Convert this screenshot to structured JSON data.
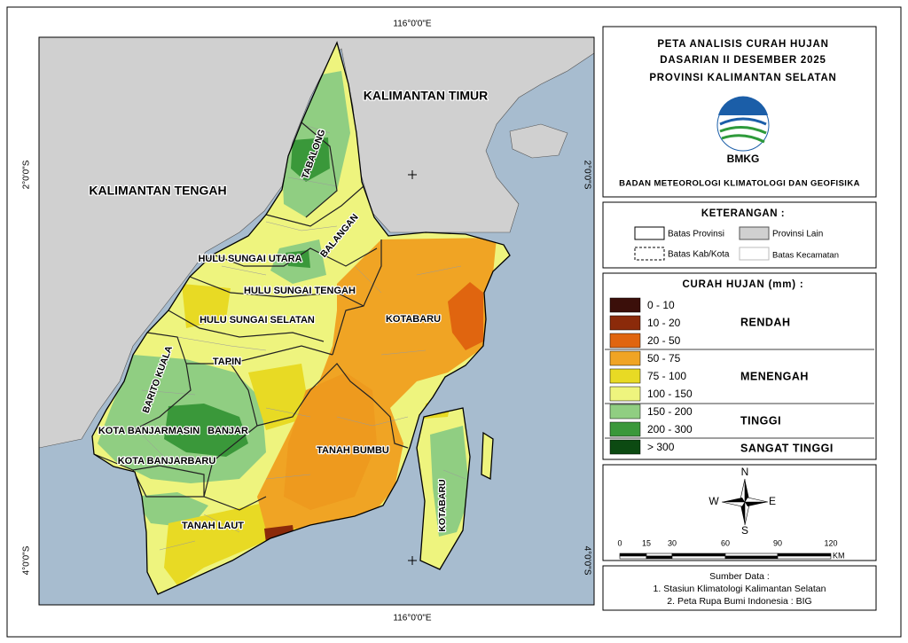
{
  "map": {
    "coord_top": "116°0'0\"E",
    "coord_bottom": "116°0'0\"E",
    "coord_left_top": "2°0'0\"S",
    "coord_left_bottom": "4°0'0\"S",
    "coord_right_top": "2°0'0\"S",
    "coord_right_bottom": "4°0'0\"S",
    "labels": [
      "KALIMANTAN TIMUR",
      "KALIMANTAN TENGAH",
      "TABALONG",
      "BALANGAN",
      "HULU SUNGAI UTARA",
      "HULU SUNGAI TENGAH",
      "HULU SUNGAI SELATAN",
      "KOTABARU",
      "TAPIN",
      "BARITO KUALA",
      "KOTA BANJARMASIN",
      "BANJAR",
      "KOTA BANJARBARU",
      "TANAH BUMBU",
      "TANAH LAUT",
      "KOTABARU"
    ]
  },
  "title": {
    "lines": [
      "PETA ANALISIS CURAH HUJAN",
      "DASARIAN II DESEMBER 2025",
      "PROVINSI KALIMANTAN SELATAN"
    ],
    "logo_text": "BMKG",
    "agency": "BADAN METEOROLOGI KLIMATOLOGI DAN GEOFISIKA"
  },
  "keterangan": {
    "title": "KETERANGAN :",
    "items": [
      "Batas Provinsi",
      "Provinsi Lain",
      "Batas Kab/Kota",
      "Batas Kecamatan"
    ]
  },
  "curah_hujan": {
    "title": "CURAH HUJAN (mm) :",
    "classes": [
      {
        "label": "0 - 10",
        "color": "#3b0f0a"
      },
      {
        "label": "10 - 20",
        "color": "#8b2a0a"
      },
      {
        "label": "20 - 50",
        "color": "#e0650f"
      },
      {
        "label": "50 - 75",
        "color": "#f0a424"
      },
      {
        "label": "75 - 100",
        "color": "#e8da24"
      },
      {
        "label": "100 - 150",
        "color": "#eef47e"
      },
      {
        "label": "150 - 200",
        "color": "#90ce82"
      },
      {
        "label": "200 - 300",
        "color": "#3a983a"
      },
      {
        "label": "> 300",
        "color": "#0c4a12"
      }
    ],
    "categories": [
      "RENDAH",
      "MENENGAH",
      "TINGGI",
      "SANGAT TINGGI"
    ]
  },
  "compass": {
    "n": "N",
    "s": "S",
    "e": "E",
    "w": "W"
  },
  "scale": {
    "ticks": [
      "0",
      "15",
      "30",
      "60",
      "90",
      "120"
    ],
    "unit": "KM"
  },
  "sources": {
    "title": "Sumber Data :",
    "items": [
      "1. Stasiun Klimatologi Kalimantan Selatan",
      "2. Peta Rupa Bumi Indonesia : BIG"
    ]
  }
}
